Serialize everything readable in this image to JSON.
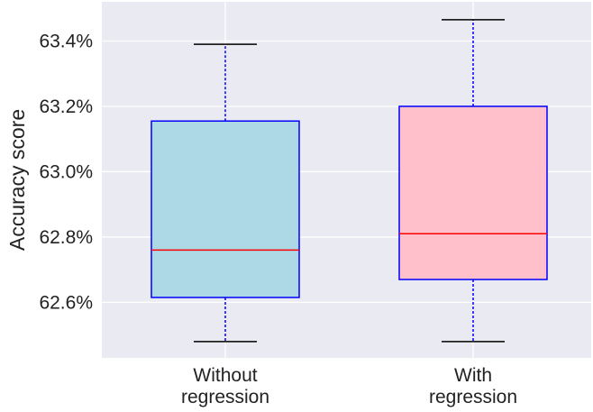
{
  "chart_data": {
    "type": "box",
    "title": "",
    "xlabel": "",
    "ylabel": "Accuracy score",
    "ylim": [
      62.43,
      63.52
    ],
    "yticks": [
      62.6,
      62.8,
      63.0,
      63.2,
      63.4
    ],
    "ytick_format": "percent_1dp",
    "grid": true,
    "categories": [
      {
        "line1": "Without",
        "line2": "regression"
      },
      {
        "line1": "With",
        "line2": "regression"
      }
    ],
    "boxes": [
      {
        "name": "Without regression",
        "min": 62.48,
        "q1": 62.615,
        "median": 62.76,
        "q3": 63.155,
        "max": 63.39,
        "fill": "#add8e6",
        "edge": "#0000ff",
        "median_color": "#ff0000",
        "whisker_color": "#0000ff",
        "cap_color": "#000000"
      },
      {
        "name": "With regression",
        "min": 62.48,
        "q1": 62.67,
        "median": 62.81,
        "q3": 63.2,
        "max": 63.465,
        "fill": "#ffc0cb",
        "edge": "#0000ff",
        "median_color": "#ff0000",
        "whisker_color": "#0000ff",
        "cap_color": "#000000"
      }
    ],
    "colors": {
      "background": "#eaeaf2",
      "grid": "#ffffff",
      "text": "#222222"
    }
  }
}
